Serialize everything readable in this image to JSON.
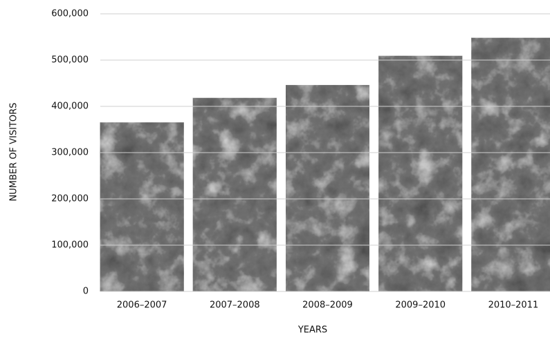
{
  "chart_data": {
    "type": "bar",
    "categories": [
      "2006–2007",
      "2007–2008",
      "2008–2009",
      "2009–2010",
      "2010–2011"
    ],
    "values": [
      365000,
      418000,
      446000,
      509000,
      548000
    ],
    "color": "#707070",
    "xlabel": "YEARS",
    "ylabel": "NUMBER OF VISITORS",
    "ylim": [
      0,
      600000
    ],
    "yticks": [
      0,
      {
        "value": 100000,
        "label": "100,000"
      },
      {
        "value": 200000,
        "label": "200,000"
      },
      {
        "value": 300000,
        "label": "300,000"
      },
      {
        "value": 400000,
        "label": "400,000"
      },
      {
        "value": 500000,
        "label": "500,000"
      },
      {
        "value": 600000,
        "label": "600,000"
      }
    ],
    "grid": true
  }
}
